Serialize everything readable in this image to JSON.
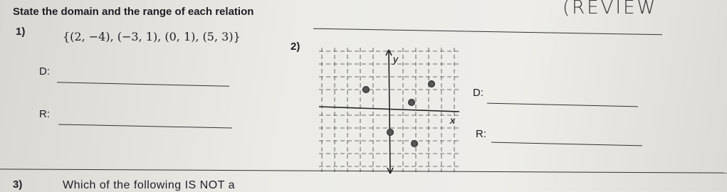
{
  "header": {
    "stamp": "(REVIEW",
    "instructions": "State the domain and the range of each relation"
  },
  "problems": [
    {
      "number": "1)",
      "relation": "{(2, −4), (−3, 1), (0, 1), (5, 3)}",
      "domain_label": "D:",
      "range_label": "R:"
    },
    {
      "number": "2)",
      "graph": {
        "x_axis_label": "x",
        "y_axis_label": "y"
      },
      "domain_label": "D:",
      "range_label": "R:"
    },
    {
      "number": "3)",
      "question": "Which of the following IS NOT a"
    }
  ]
}
